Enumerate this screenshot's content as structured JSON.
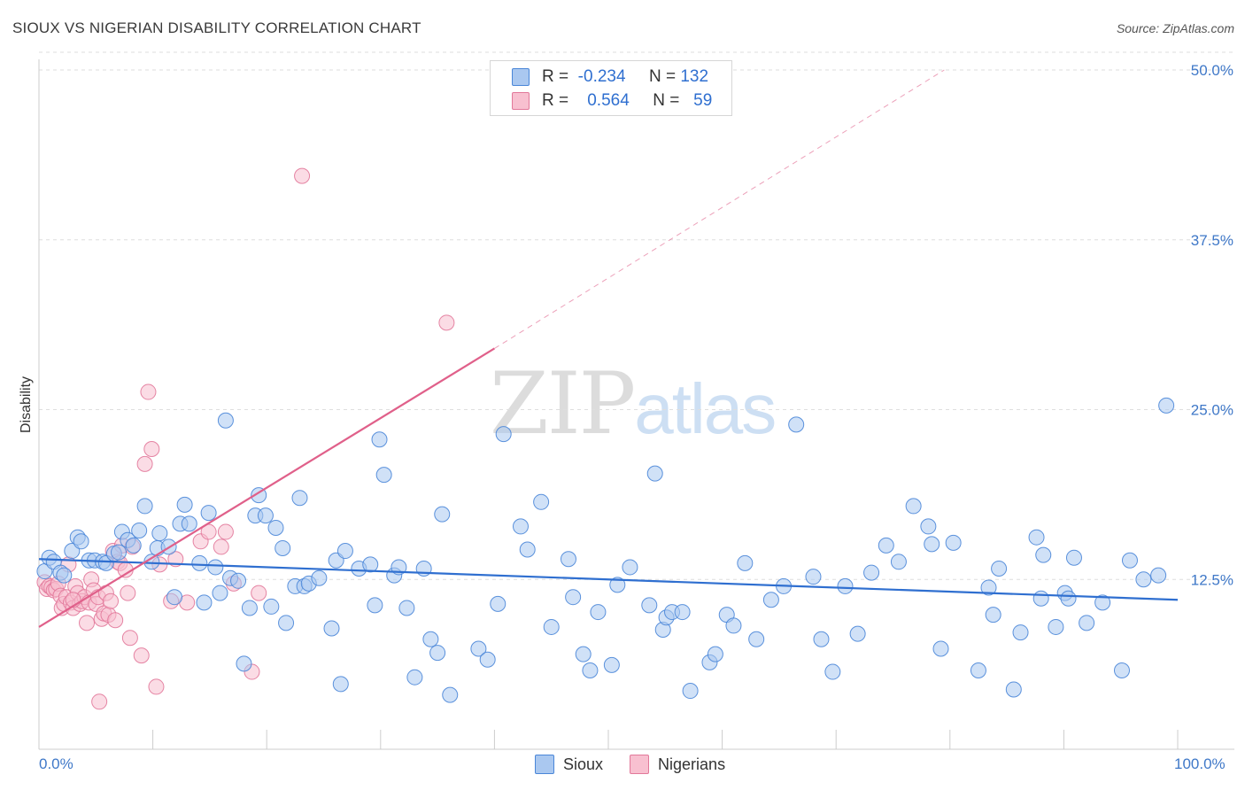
{
  "title": "SIOUX VS NIGERIAN DISABILITY CORRELATION CHART",
  "source": "Source: ZipAtlas.com",
  "watermark": {
    "part1": "ZIP",
    "part2": "atlas"
  },
  "legend": {
    "rows": [
      {
        "r_label": "R =",
        "r_value": "-0.234",
        "n_label": "N =",
        "n_value": "132"
      },
      {
        "r_label": "R =",
        "r_value": "0.564",
        "n_label": "N =",
        "n_value": "59"
      }
    ]
  },
  "bottom_legend": [
    {
      "label": "Sioux",
      "color": "#aac8f0",
      "stroke": "#4a86d8"
    },
    {
      "label": "Nigerians",
      "color": "#f8c0d0",
      "stroke": "#e2789a"
    }
  ],
  "colors": {
    "sioux_fill": "#aac8f0",
    "sioux_stroke": "#4a86d8",
    "sioux_line": "#2f6fd0",
    "nig_fill": "#f8c0d0",
    "nig_stroke": "#e2789a",
    "nig_line": "#e0608a",
    "grid": "#dedede",
    "axis_text": "#3f78c8"
  },
  "chart_data": {
    "type": "scatter",
    "xlabel": "",
    "ylabel": "Disability",
    "xlim": [
      0,
      100
    ],
    "ylim": [
      0,
      50
    ],
    "x_tick_labels": [
      "0.0%",
      "100.0%"
    ],
    "y_ticks": [
      12.5,
      25.0,
      37.5,
      50.0
    ],
    "y_tick_labels": [
      "12.5%",
      "25.0%",
      "37.5%",
      "50.0%"
    ],
    "grid": "horizontal dashed",
    "series": [
      {
        "name": "Sioux",
        "trend": {
          "x0": 0,
          "y0": 14.0,
          "x1": 100,
          "y1": 11.0
        },
        "points": [
          [
            0.5,
            13.1
          ],
          [
            0.9,
            14.1
          ],
          [
            1.3,
            13.8
          ],
          [
            1.9,
            13.0
          ],
          [
            2.2,
            12.8
          ],
          [
            2.9,
            14.6
          ],
          [
            3.4,
            15.6
          ],
          [
            3.7,
            15.3
          ],
          [
            4.4,
            13.9
          ],
          [
            4.9,
            13.9
          ],
          [
            5.6,
            13.8
          ],
          [
            5.9,
            13.7
          ],
          [
            6.6,
            14.4
          ],
          [
            7.0,
            14.5
          ],
          [
            7.3,
            16.0
          ],
          [
            7.8,
            15.4
          ],
          [
            8.3,
            15.0
          ],
          [
            8.8,
            16.1
          ],
          [
            9.3,
            17.9
          ],
          [
            9.9,
            13.8
          ],
          [
            10.4,
            14.8
          ],
          [
            10.6,
            15.9
          ],
          [
            11.4,
            14.9
          ],
          [
            11.9,
            11.2
          ],
          [
            12.4,
            16.6
          ],
          [
            12.8,
            18.0
          ],
          [
            13.2,
            16.6
          ],
          [
            14.1,
            13.7
          ],
          [
            14.5,
            10.8
          ],
          [
            14.9,
            17.4
          ],
          [
            15.5,
            13.4
          ],
          [
            15.9,
            11.5
          ],
          [
            16.4,
            24.2
          ],
          [
            16.8,
            12.6
          ],
          [
            17.5,
            12.4
          ],
          [
            18.0,
            6.3
          ],
          [
            18.5,
            10.4
          ],
          [
            19.0,
            17.2
          ],
          [
            19.3,
            18.7
          ],
          [
            19.9,
            17.2
          ],
          [
            20.4,
            10.5
          ],
          [
            20.8,
            16.3
          ],
          [
            21.4,
            14.8
          ],
          [
            21.7,
            9.3
          ],
          [
            22.5,
            12.0
          ],
          [
            22.9,
            18.5
          ],
          [
            23.3,
            12.0
          ],
          [
            23.7,
            12.2
          ],
          [
            24.6,
            12.6
          ],
          [
            25.7,
            8.9
          ],
          [
            26.1,
            13.9
          ],
          [
            26.5,
            4.8
          ],
          [
            26.9,
            14.6
          ],
          [
            28.1,
            13.3
          ],
          [
            29.1,
            13.6
          ],
          [
            29.5,
            10.6
          ],
          [
            29.9,
            22.8
          ],
          [
            30.3,
            20.2
          ],
          [
            31.2,
            12.8
          ],
          [
            31.6,
            13.4
          ],
          [
            32.3,
            10.4
          ],
          [
            33.0,
            5.3
          ],
          [
            33.8,
            13.3
          ],
          [
            34.4,
            8.1
          ],
          [
            35.0,
            7.1
          ],
          [
            35.4,
            17.3
          ],
          [
            36.1,
            4.0
          ],
          [
            38.6,
            7.4
          ],
          [
            39.4,
            6.6
          ],
          [
            40.3,
            10.7
          ],
          [
            40.8,
            23.2
          ],
          [
            42.3,
            16.4
          ],
          [
            42.9,
            14.7
          ],
          [
            44.1,
            18.2
          ],
          [
            45.0,
            9.0
          ],
          [
            46.5,
            14.0
          ],
          [
            46.9,
            11.2
          ],
          [
            47.8,
            7.0
          ],
          [
            48.4,
            5.8
          ],
          [
            49.1,
            10.1
          ],
          [
            50.3,
            6.2
          ],
          [
            50.8,
            12.1
          ],
          [
            51.9,
            13.4
          ],
          [
            53.6,
            10.6
          ],
          [
            54.1,
            20.3
          ],
          [
            54.8,
            8.8
          ],
          [
            55.1,
            9.7
          ],
          [
            55.6,
            10.1
          ],
          [
            56.5,
            10.1
          ],
          [
            57.2,
            4.3
          ],
          [
            58.9,
            6.4
          ],
          [
            59.4,
            7.0
          ],
          [
            60.4,
            9.9
          ],
          [
            61.0,
            9.1
          ],
          [
            62.0,
            13.7
          ],
          [
            63.0,
            8.1
          ],
          [
            64.3,
            11.0
          ],
          [
            66.5,
            23.9
          ],
          [
            65.4,
            12.0
          ],
          [
            68.7,
            8.1
          ],
          [
            68.0,
            12.7
          ],
          [
            69.7,
            5.7
          ],
          [
            70.8,
            12.0
          ],
          [
            71.9,
            8.5
          ],
          [
            73.1,
            13.0
          ],
          [
            74.4,
            15.0
          ],
          [
            75.5,
            13.8
          ],
          [
            76.8,
            17.9
          ],
          [
            78.1,
            16.4
          ],
          [
            78.4,
            15.1
          ],
          [
            79.2,
            7.4
          ],
          [
            80.3,
            15.2
          ],
          [
            82.5,
            5.8
          ],
          [
            83.4,
            11.9
          ],
          [
            83.8,
            9.9
          ],
          [
            84.3,
            13.3
          ],
          [
            85.6,
            4.4
          ],
          [
            86.2,
            8.6
          ],
          [
            87.6,
            15.6
          ],
          [
            88.0,
            11.1
          ],
          [
            88.2,
            14.3
          ],
          [
            89.3,
            9.0
          ],
          [
            90.1,
            11.5
          ],
          [
            90.4,
            11.1
          ],
          [
            90.9,
            14.1
          ],
          [
            92.0,
            9.3
          ],
          [
            93.4,
            10.8
          ],
          [
            95.1,
            5.8
          ],
          [
            95.8,
            13.9
          ],
          [
            97.0,
            12.5
          ],
          [
            98.3,
            12.8
          ],
          [
            99.0,
            25.3
          ]
        ]
      },
      {
        "name": "Nigerians",
        "trend": {
          "x0": 0,
          "y0": 9.0,
          "x1": 40,
          "y1": 29.5
        },
        "trend_extension": {
          "x0": 40,
          "y0": 29.5,
          "x1": 79.5,
          "y1": 50.0
        },
        "points": [
          [
            0.5,
            12.3
          ],
          [
            0.7,
            11.8
          ],
          [
            0.9,
            12.0
          ],
          [
            1.1,
            11.9
          ],
          [
            1.3,
            11.7
          ],
          [
            1.5,
            11.8
          ],
          [
            1.7,
            12.2
          ],
          [
            1.9,
            11.3
          ],
          [
            2.0,
            10.4
          ],
          [
            2.2,
            10.7
          ],
          [
            2.4,
            11.2
          ],
          [
            2.6,
            13.6
          ],
          [
            2.8,
            10.8
          ],
          [
            3.0,
            10.4
          ],
          [
            3.2,
            12.0
          ],
          [
            3.4,
            11.5
          ],
          [
            3.6,
            10.7
          ],
          [
            3.8,
            10.9
          ],
          [
            4.0,
            11.2
          ],
          [
            4.2,
            9.3
          ],
          [
            4.4,
            10.8
          ],
          [
            4.6,
            12.5
          ],
          [
            4.8,
            11.7
          ],
          [
            5.0,
            10.7
          ],
          [
            5.2,
            11.2
          ],
          [
            5.5,
            9.6
          ],
          [
            5.7,
            10.0
          ],
          [
            5.9,
            11.5
          ],
          [
            6.1,
            9.9
          ],
          [
            6.3,
            10.9
          ],
          [
            6.5,
            14.6
          ],
          [
            6.7,
            9.5
          ],
          [
            6.9,
            13.8
          ],
          [
            7.1,
            13.7
          ],
          [
            7.3,
            15.0
          ],
          [
            7.6,
            13.2
          ],
          [
            7.8,
            11.5
          ],
          [
            8.0,
            8.2
          ],
          [
            8.2,
            14.9
          ],
          [
            9.0,
            6.9
          ],
          [
            9.3,
            21.0
          ],
          [
            9.6,
            26.3
          ],
          [
            9.9,
            22.1
          ],
          [
            10.3,
            4.6
          ],
          [
            10.6,
            13.6
          ],
          [
            11.6,
            10.9
          ],
          [
            12.0,
            14.0
          ],
          [
            13.0,
            10.8
          ],
          [
            14.2,
            15.3
          ],
          [
            14.9,
            16.0
          ],
          [
            16.0,
            14.9
          ],
          [
            16.4,
            16.0
          ],
          [
            17.1,
            12.2
          ],
          [
            18.7,
            5.7
          ],
          [
            19.3,
            11.5
          ],
          [
            23.1,
            42.2
          ],
          [
            35.8,
            31.4
          ],
          [
            5.3,
            3.5
          ],
          [
            3.0,
            11.0
          ]
        ]
      }
    ]
  }
}
